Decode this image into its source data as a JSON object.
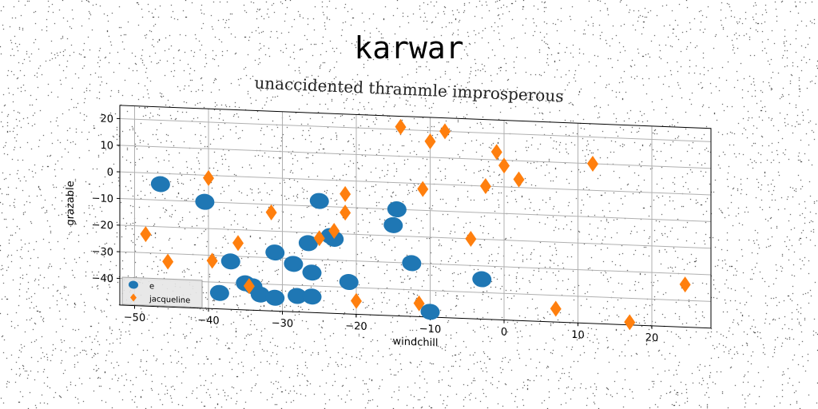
{
  "chart_data": {
    "type": "scatter",
    "title": "karwar",
    "subtitle": "unaccidented thrammle improsperous",
    "xlabel": "windchill",
    "ylabel": "grazable",
    "xlim": [
      -52,
      28
    ],
    "ylim": [
      -50,
      25
    ],
    "xticks": [
      -50,
      -40,
      -30,
      -20,
      -10,
      0,
      10,
      20
    ],
    "yticks": [
      -40,
      -30,
      -20,
      -10,
      0,
      10,
      20
    ],
    "grid": true,
    "legend": "lower-left",
    "series": [
      {
        "name": "e",
        "color": "#1f77b4",
        "marker": "circle",
        "points": [
          [
            -46.5,
            -4
          ],
          [
            -40.5,
            -10
          ],
          [
            -38.5,
            -44
          ],
          [
            -37,
            -32
          ],
          [
            -35,
            -40
          ],
          [
            -34,
            -41
          ],
          [
            -33,
            -44
          ],
          [
            -31,
            -45
          ],
          [
            -31,
            -28
          ],
          [
            -28.5,
            -32
          ],
          [
            -28,
            -44
          ],
          [
            -26.5,
            -24
          ],
          [
            -26,
            -44
          ],
          [
            -26,
            -35
          ],
          [
            -25,
            -8
          ],
          [
            -23.5,
            -21
          ],
          [
            -23,
            -22
          ],
          [
            -21,
            -38
          ],
          [
            -15,
            -16
          ],
          [
            -14.5,
            -10
          ],
          [
            -12.5,
            -30
          ],
          [
            -10,
            -48
          ],
          [
            -3,
            -35
          ]
        ]
      },
      {
        "name": "jacqueline",
        "color": "#ff7f0e",
        "marker": "diamond",
        "points": [
          [
            -48.5,
            -23
          ],
          [
            -45.5,
            -33
          ],
          [
            -40,
            -1
          ],
          [
            -39.5,
            -32
          ],
          [
            -36,
            -25
          ],
          [
            -34.5,
            -41
          ],
          [
            -31.5,
            -13
          ],
          [
            -25,
            -22
          ],
          [
            -23,
            -19
          ],
          [
            -21.5,
            -12
          ],
          [
            -21.5,
            -5
          ],
          [
            -20,
            -45
          ],
          [
            -14,
            21
          ],
          [
            -11.5,
            -45
          ],
          [
            -11,
            -2
          ],
          [
            -10,
            16
          ],
          [
            -8,
            20
          ],
          [
            -4.5,
            -20
          ],
          [
            -2.5,
            0
          ],
          [
            -1,
            13
          ],
          [
            0,
            8
          ],
          [
            2,
            3
          ],
          [
            12,
            10
          ],
          [
            17,
            -49
          ],
          [
            24.5,
            -34
          ],
          [
            7,
            -45
          ]
        ]
      }
    ]
  }
}
